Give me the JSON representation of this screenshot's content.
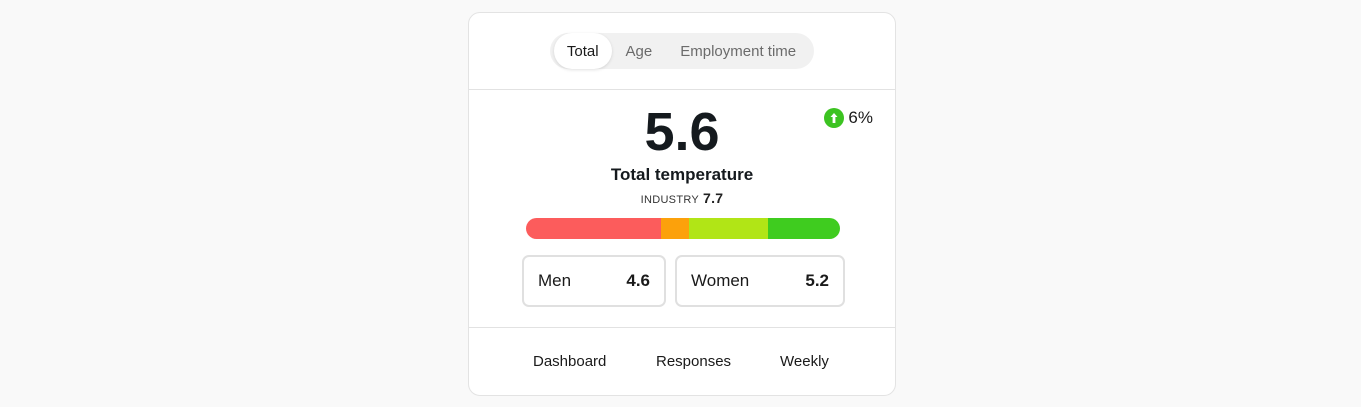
{
  "tabs": [
    {
      "label": "Total",
      "active": true
    },
    {
      "label": "Age",
      "active": false
    },
    {
      "label": "Employment time",
      "active": false
    }
  ],
  "score": "5.6",
  "delta": {
    "value": "6%",
    "direction": "up",
    "icon": "arrow-up-icon",
    "color": "#3cc321"
  },
  "metric_label": "Total temperature",
  "industry": {
    "label": "INDUSTRY",
    "value": "7.7"
  },
  "scale": {
    "segments": [
      {
        "color": "#fc5c5c",
        "share": 0.43
      },
      {
        "color": "#fca10b",
        "share": 0.09
      },
      {
        "color": "#b1e516",
        "share": 0.25
      },
      {
        "color": "#3fcc1f",
        "share": 0.23
      }
    ]
  },
  "breakdown": [
    {
      "label": "Men",
      "value": "4.6"
    },
    {
      "label": "Women",
      "value": "5.2"
    }
  ],
  "nav": [
    "Dashboard",
    "Responses",
    "Weekly"
  ]
}
